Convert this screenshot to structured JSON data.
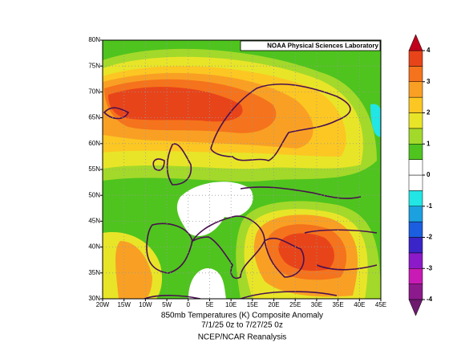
{
  "chart_data": {
    "type": "map",
    "header": "NOAA Physical Sciences Laboratory",
    "title_lines": [
      "850mb Temperatures (K)  Composite Anomaly",
      "7/1/25 0z  to 7/27/25 0z",
      "NCEP/NCAR Reanalysis"
    ],
    "xlim": [
      -20,
      45
    ],
    "ylim": [
      30,
      80
    ],
    "xticks": [
      {
        "value": -20,
        "label": "20W"
      },
      {
        "value": -15,
        "label": "15W"
      },
      {
        "value": -10,
        "label": "10W"
      },
      {
        "value": -5,
        "label": "5W"
      },
      0,
      {
        "value": 5,
        "label": "5E"
      },
      {
        "value": 10,
        "label": "10E"
      },
      {
        "value": 15,
        "label": "15E"
      },
      {
        "value": 20,
        "label": "20E"
      },
      {
        "value": 25,
        "label": "25E"
      },
      {
        "value": 30,
        "label": "30E"
      },
      {
        "value": 35,
        "label": "35E"
      },
      {
        "value": 40,
        "label": "40E"
      },
      {
        "value": 45,
        "label": "45E"
      }
    ],
    "yticks": [
      {
        "value": 30,
        "label": "30N"
      },
      {
        "value": 35,
        "label": "35N"
      },
      {
        "value": 40,
        "label": "40N"
      },
      {
        "value": 45,
        "label": "45N"
      },
      {
        "value": 50,
        "label": "50N"
      },
      {
        "value": 55,
        "label": "55N"
      },
      {
        "value": 60,
        "label": "60N"
      },
      {
        "value": 65,
        "label": "65N"
      },
      {
        "value": 70,
        "label": "70N"
      },
      {
        "value": 75,
        "label": "75N"
      },
      {
        "value": 80,
        "label": "80N"
      }
    ],
    "grid": true,
    "colorbar": {
      "boundaries": [
        -4,
        -3.5,
        -3,
        -2.5,
        -2,
        -1.5,
        -1,
        -0.5,
        0,
        0.5,
        1,
        1.5,
        2,
        2.5,
        3,
        3.5,
        4
      ],
      "colors": [
        "#8c1a8c",
        "#c81ab4",
        "#8c1ac8",
        "#3a25c8",
        "#1b5ee0",
        "#1ba0e0",
        "#22e5e5",
        "#ffffff",
        "#ffffff",
        "#4fc41e",
        "#a3d92a",
        "#e8e528",
        "#fcc722",
        "#f9a024",
        "#f5731c",
        "#e8441a"
      ],
      "extend_colors": [
        "#6e1a6e",
        "#c0001c"
      ],
      "ticks": [
        -4,
        -3,
        -2,
        -1,
        0,
        1,
        2,
        3,
        4
      ]
    }
  }
}
